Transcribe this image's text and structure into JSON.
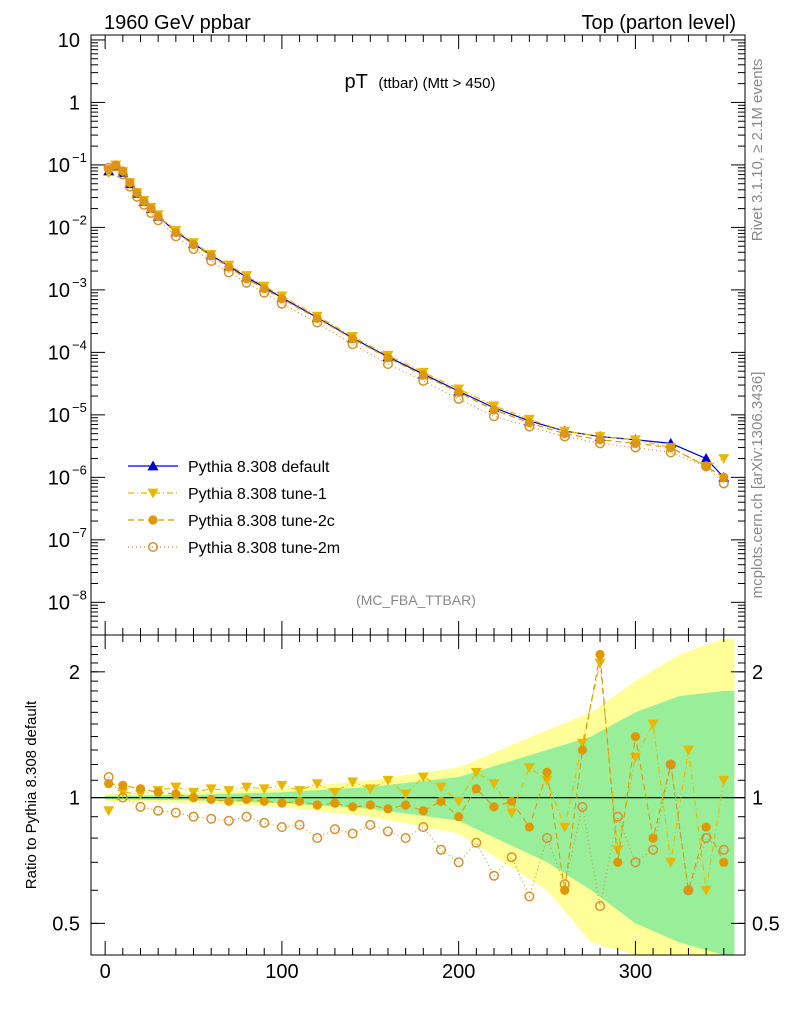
{
  "header": {
    "left": "1960 GeV ppbar",
    "right": "Top (parton level)"
  },
  "side_labels": {
    "rivet": "Rivet 3.1.10, ≥ 2.1M events",
    "mcplots": "mcplots.cern.ch [arXiv:1306.3436]"
  },
  "chart_data": [
    {
      "type": "scatter",
      "title": "pT (ttbar) (Mtt > 450)",
      "title_main": "pT",
      "title_sub": "(ttbar) (Mtt > 450)",
      "watermark": "(MC_FBA_TTBAR)",
      "xlabel": "",
      "ylabel": "",
      "xlim": [
        -8,
        362
      ],
      "ylim": [
        3e-09,
        12
      ],
      "yscale": "log",
      "y_ticks": [
        {
          "v": 10,
          "label": "10"
        },
        {
          "v": 1,
          "label": "1"
        },
        {
          "v": 0.1,
          "label": "10",
          "exp": "−1"
        },
        {
          "v": 0.01,
          "label": "10",
          "exp": "−2"
        },
        {
          "v": 0.001,
          "label": "10",
          "exp": "−3"
        },
        {
          "v": 0.0001,
          "label": "10",
          "exp": "−4"
        },
        {
          "v": 1e-05,
          "label": "10",
          "exp": "−5"
        },
        {
          "v": 1e-06,
          "label": "10",
          "exp": "−6"
        },
        {
          "v": 1e-07,
          "label": "10",
          "exp": "−7"
        },
        {
          "v": 1e-08,
          "label": "10",
          "exp": "−8"
        }
      ],
      "legend_position": "lower-left",
      "series": [
        {
          "name": "Pythia 8.308 default",
          "color": "#0000cc",
          "marker": "triangle-up",
          "x": [
            2,
            6,
            10,
            14,
            18,
            22,
            26,
            30,
            40,
            50,
            60,
            70,
            80,
            90,
            100,
            120,
            140,
            160,
            180,
            200,
            220,
            240,
            260,
            280,
            300,
            320,
            340,
            350
          ],
          "y": [
            0.08,
            0.095,
            0.075,
            0.05,
            0.035,
            0.026,
            0.02,
            0.015,
            0.0085,
            0.0055,
            0.0036,
            0.0024,
            0.0016,
            0.0011,
            0.00075,
            0.00036,
            0.00017,
            8.5e-05,
            4.5e-05,
            2.4e-05,
            1.3e-05,
            8e-06,
            5.5e-06,
            4.5e-06,
            4e-06,
            3.5e-06,
            2e-06,
            1e-06
          ]
        },
        {
          "name": "Pythia 8.308 tune-1",
          "color": "#e8b800",
          "marker": "triangle-down",
          "x": [
            2,
            6,
            10,
            14,
            18,
            22,
            26,
            30,
            40,
            50,
            60,
            70,
            80,
            90,
            100,
            120,
            140,
            160,
            180,
            200,
            220,
            240,
            260,
            280,
            300,
            320,
            340,
            350
          ],
          "y": [
            0.075,
            0.1,
            0.078,
            0.052,
            0.036,
            0.027,
            0.021,
            0.016,
            0.009,
            0.0057,
            0.0037,
            0.0025,
            0.0017,
            0.00115,
            0.0008,
            0.00038,
            0.00018,
            9e-05,
            4.8e-05,
            2.6e-05,
            1.4e-05,
            8.5e-06,
            5.5e-06,
            4.5e-06,
            4e-06,
            3e-06,
            1.5e-06,
            2e-06
          ]
        },
        {
          "name": "Pythia 8.308 tune-2c",
          "color": "#e09800",
          "marker": "circle",
          "x": [
            2,
            6,
            10,
            14,
            18,
            22,
            26,
            30,
            40,
            50,
            60,
            70,
            80,
            90,
            100,
            120,
            140,
            160,
            180,
            200,
            220,
            240,
            260,
            280,
            300,
            320,
            340,
            350
          ],
          "y": [
            0.085,
            0.1,
            0.08,
            0.052,
            0.036,
            0.026,
            0.02,
            0.015,
            0.0083,
            0.0053,
            0.0035,
            0.0023,
            0.0015,
            0.00105,
            0.00072,
            0.00035,
            0.000165,
            8.2e-05,
            4.3e-05,
            2.3e-05,
            1.2e-05,
            7.5e-06,
            5e-06,
            4e-06,
            3.5e-06,
            3e-06,
            1.5e-06,
            1e-06
          ]
        },
        {
          "name": "Pythia 8.308 tune-2m",
          "color": "#d89030",
          "marker": "open-circle",
          "x": [
            2,
            6,
            10,
            14,
            18,
            22,
            26,
            30,
            40,
            50,
            60,
            70,
            80,
            90,
            100,
            120,
            140,
            160,
            180,
            200,
            220,
            240,
            260,
            280,
            300,
            320,
            340,
            350
          ],
          "y": [
            0.09,
            0.095,
            0.07,
            0.045,
            0.031,
            0.023,
            0.017,
            0.013,
            0.0072,
            0.0045,
            0.0029,
            0.0019,
            0.0013,
            0.0009,
            0.0006,
            0.0003,
            0.000135,
            6.5e-05,
            3.5e-05,
            1.8e-05,
            9.5e-06,
            6.5e-06,
            4.5e-06,
            3.5e-06,
            3e-06,
            2.5e-06,
            1.5e-06,
            8e-07
          ]
        }
      ]
    },
    {
      "type": "scatter",
      "title": "",
      "xlabel": "",
      "ylabel": "Ratio to Pythia 8.308 default",
      "xlim": [
        -8,
        362
      ],
      "ylim": [
        0.42,
        2.45
      ],
      "yscale": "log",
      "y_ticks": [
        {
          "v": 0.5,
          "label": "0.5"
        },
        {
          "v": 1,
          "label": "1"
        },
        {
          "v": 2,
          "label": "2"
        }
      ],
      "x_ticks": [
        {
          "v": 0,
          "label": "0"
        },
        {
          "v": 100,
          "label": "100"
        },
        {
          "v": 200,
          "label": "200"
        },
        {
          "v": 300,
          "label": "300"
        }
      ],
      "reference_line": 1,
      "bands": [
        {
          "name": "uncertainty (yellow)",
          "color": "#ffff99",
          "x": [
            0,
            50,
            100,
            150,
            200,
            250,
            275,
            300,
            325,
            350,
            356
          ],
          "lo": [
            0.98,
            0.97,
            0.95,
            0.9,
            0.82,
            0.6,
            0.45,
            0.4,
            0.38,
            0.35,
            0.35
          ],
          "hi": [
            1.02,
            1.03,
            1.05,
            1.1,
            1.18,
            1.45,
            1.6,
            1.9,
            2.2,
            2.4,
            2.4
          ]
        },
        {
          "name": "uncertainty (green)",
          "color": "#99ee99",
          "x": [
            0,
            50,
            100,
            150,
            200,
            250,
            275,
            300,
            325,
            350,
            356
          ],
          "lo": [
            0.99,
            0.985,
            0.97,
            0.94,
            0.88,
            0.7,
            0.6,
            0.5,
            0.45,
            0.4,
            0.4
          ],
          "hi": [
            1.01,
            1.015,
            1.03,
            1.06,
            1.12,
            1.3,
            1.4,
            1.6,
            1.75,
            1.8,
            1.8
          ]
        }
      ],
      "series": [
        {
          "name": "Pythia 8.308 tune-1",
          "color": "#e8b800",
          "marker": "triangle-down",
          "x": [
            2,
            10,
            20,
            30,
            40,
            50,
            60,
            70,
            80,
            90,
            100,
            110,
            120,
            130,
            140,
            150,
            160,
            170,
            180,
            190,
            200,
            210,
            220,
            230,
            240,
            250,
            260,
            270,
            280,
            290,
            300,
            310,
            320,
            330,
            340,
            350
          ],
          "y": [
            0.93,
            1.03,
            1.02,
            1.04,
            1.06,
            1.03,
            1.05,
            1.04,
            1.06,
            1.05,
            1.07,
            1.04,
            1.08,
            1.03,
            1.09,
            1.05,
            1.1,
            1.02,
            1.12,
            1.06,
            0.98,
            1.15,
            1.08,
            0.92,
            1.18,
            1.1,
            0.85,
            1.35,
            2.1,
            0.75,
            1.25,
            1.5,
            0.7,
            1.3,
            0.6,
            1.1
          ]
        },
        {
          "name": "Pythia 8.308 tune-2c",
          "color": "#e09800",
          "marker": "circle",
          "x": [
            2,
            10,
            20,
            30,
            40,
            50,
            60,
            70,
            80,
            90,
            100,
            110,
            120,
            130,
            140,
            150,
            160,
            170,
            180,
            190,
            200,
            210,
            220,
            230,
            240,
            250,
            260,
            270,
            280,
            290,
            300,
            310,
            320,
            330,
            340,
            350
          ],
          "y": [
            1.08,
            1.07,
            1.05,
            1.03,
            1.02,
            1.0,
            0.99,
            0.98,
            0.99,
            0.98,
            0.97,
            0.98,
            0.96,
            0.97,
            0.95,
            0.96,
            0.94,
            0.96,
            0.93,
            0.98,
            0.9,
            1.05,
            0.95,
            0.98,
            0.85,
            1.15,
            0.6,
            1.3,
            2.2,
            0.7,
            1.4,
            0.8,
            1.2,
            0.6,
            0.85,
            0.7
          ]
        },
        {
          "name": "Pythia 8.308 tune-2m",
          "color": "#d89030",
          "marker": "open-circle",
          "x": [
            2,
            10,
            20,
            30,
            40,
            50,
            60,
            70,
            80,
            90,
            100,
            110,
            120,
            130,
            140,
            150,
            160,
            170,
            180,
            190,
            200,
            210,
            220,
            230,
            240,
            250,
            260,
            270,
            280,
            290,
            300,
            310,
            320,
            330,
            340,
            350
          ],
          "y": [
            1.12,
            1.0,
            0.95,
            0.93,
            0.92,
            0.9,
            0.89,
            0.88,
            0.9,
            0.87,
            0.85,
            0.86,
            0.8,
            0.84,
            0.82,
            0.86,
            0.83,
            0.8,
            0.85,
            0.75,
            0.7,
            0.78,
            0.65,
            0.72,
            0.58,
            0.8,
            0.62,
            0.95,
            0.55,
            0.9,
            0.7,
            0.75,
            1.2,
            0.6,
            0.8,
            0.75
          ]
        }
      ]
    }
  ]
}
